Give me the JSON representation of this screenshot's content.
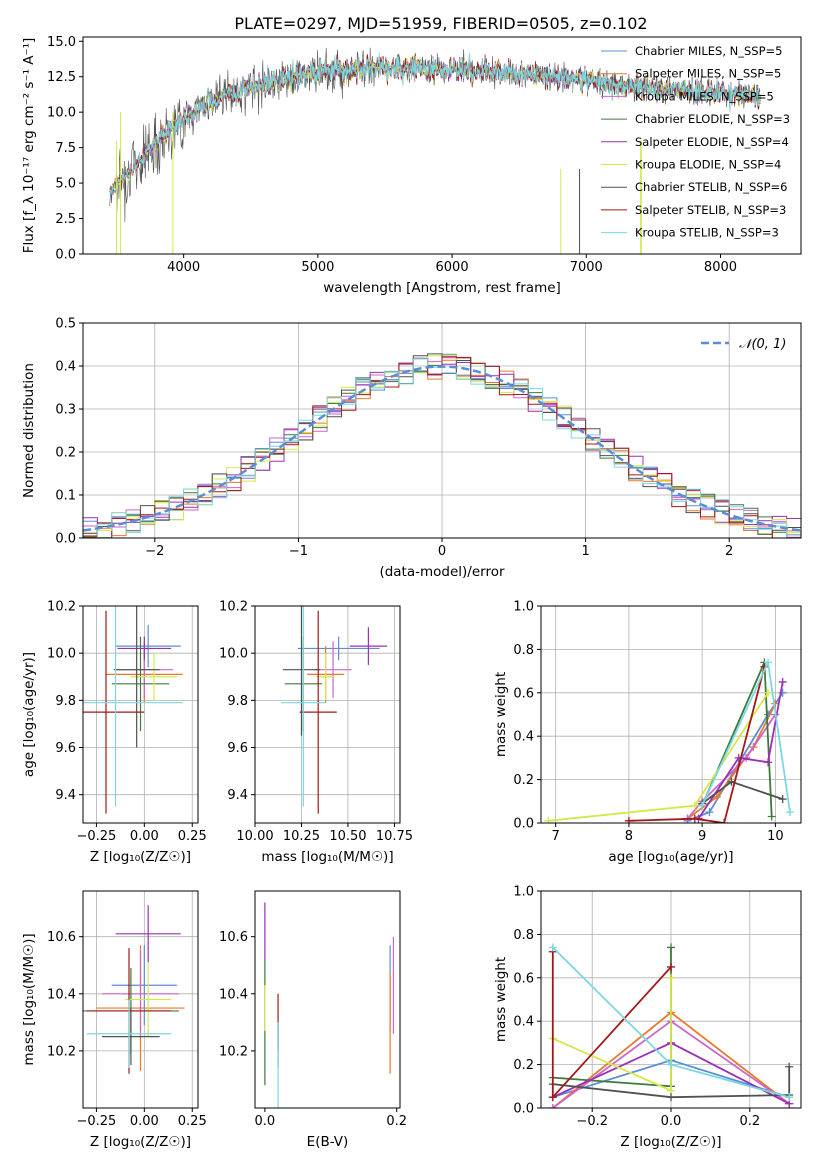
{
  "figure": {
    "title": "PLATE=0297, MJD=51959, FIBERID=0505, z=0.102"
  },
  "colors": [
    "#5b8dd6",
    "#e8792b",
    "#cc66cc",
    "#3d7a3d",
    "#9b2fb5",
    "#d4e84a",
    "#505050",
    "#a31818",
    "#7ad8e0"
  ],
  "chart_data": [
    {
      "id": "spectrum",
      "type": "line",
      "xlabel": "wavelength [Angstrom, rest frame]",
      "ylabel": "Flux [f_λ 10⁻¹⁷ erg cm⁻² s⁻¹ A⁻¹]",
      "xlim": [
        3250,
        8600
      ],
      "ylim": [
        0,
        15.3
      ],
      "xticks": [
        4000,
        5000,
        6000,
        7000,
        8000
      ],
      "yticks": [
        0.0,
        2.5,
        5.0,
        7.5,
        10.0,
        12.5,
        15.0
      ],
      "grid": false,
      "legend_position": "top-right",
      "series": [
        {
          "name": "Chabrier MILES, N_SSP=5"
        },
        {
          "name": "Salpeter MILES, N_SSP=5"
        },
        {
          "name": "Kroupa MILES, N_SSP=5"
        },
        {
          "name": "Chabrier ELODIE, N_SSP=3"
        },
        {
          "name": "Salpeter ELODIE, N_SSP=4"
        },
        {
          "name": "Kroupa ELODIE, N_SSP=4"
        },
        {
          "name": "Chabrier STELIB, N_SSP=6"
        },
        {
          "name": "Salpeter STELIB, N_SSP=3"
        },
        {
          "name": "Kroupa STELIB, N_SSP=3"
        }
      ],
      "observed_continuum": {
        "x": [
          3450,
          3600,
          3800,
          4000,
          4200,
          4500,
          4800,
          5100,
          5400,
          5800,
          6200,
          6600,
          7000,
          7400,
          7800,
          8300
        ],
        "y": [
          4.5,
          5.8,
          8.0,
          9.5,
          10.8,
          11.8,
          12.5,
          12.9,
          13.1,
          13.1,
          12.9,
          12.6,
          12.3,
          11.8,
          11.5,
          11.2
        ]
      }
    },
    {
      "id": "residuals",
      "type": "histogram",
      "xlabel": "(data-model)/error",
      "ylabel": "Normed distribution",
      "xlim": [
        -2.5,
        2.5
      ],
      "ylim": [
        0,
        0.5
      ],
      "xticks": [
        -2,
        -1,
        0,
        1,
        2
      ],
      "yticks": [
        0.0,
        0.1,
        0.2,
        0.3,
        0.4,
        0.5
      ],
      "grid": true,
      "legend": {
        "label": "𝒩(0, 1)",
        "position": "top-right"
      },
      "bins": 50
    },
    {
      "id": "age_vs_Z",
      "type": "errorbar",
      "xlabel": "Z [log₁₀(Z/Z☉)]",
      "ylabel": "age  [log₁₀(age/yr)]",
      "xlim": [
        -0.32,
        0.28
      ],
      "ylim": [
        9.28,
        10.2
      ],
      "xticks": [
        -0.25,
        0.0,
        0.25
      ],
      "yticks": [
        9.4,
        9.6,
        9.8,
        10.0,
        10.2
      ],
      "grid": true,
      "points": [
        {
          "x": 0.02,
          "xerr": 0.17,
          "y": 10.03,
          "yerr": 0.09
        },
        {
          "x": 0.0,
          "xerr": 0.2,
          "y": 9.91,
          "yerr": 0.12
        },
        {
          "x": 0.0,
          "xerr": 0.15,
          "y": 9.93,
          "yerr": 0.12
        },
        {
          "x": -0.02,
          "xerr": 0.15,
          "y": 9.87,
          "yerr": 0.2
        },
        {
          "x": 0.0,
          "xerr": 0.14,
          "y": 10.02,
          "yerr": 0.05
        },
        {
          "x": 0.05,
          "xerr": 0.12,
          "y": 9.9,
          "yerr": 0.1
        },
        {
          "x": -0.04,
          "xerr": 0.12,
          "y": 9.93,
          "yerr": 0.33
        },
        {
          "x": -0.2,
          "xerr": 0.2,
          "y": 9.75,
          "yerr": 0.43
        },
        {
          "x": -0.15,
          "xerr": 0.35,
          "y": 9.79,
          "yerr": 0.44
        }
      ]
    },
    {
      "id": "age_vs_mass",
      "type": "errorbar",
      "xlabel": "mass [log₁₀(M/M☉)]",
      "xlim": [
        10.0,
        10.78
      ],
      "ylim": [
        9.28,
        10.2
      ],
      "xticks": [
        10.0,
        10.25,
        10.5,
        10.75
      ],
      "xticklabels": [
        "10.00",
        "10.25",
        "10.50",
        "10.75"
      ],
      "yticks": [
        9.4,
        9.6,
        9.8,
        10.0,
        10.2
      ],
      "grid": true,
      "points": [
        {
          "x": 10.45,
          "xerr": 0.22,
          "y": 10.02,
          "yerr": 0.05
        },
        {
          "x": 10.38,
          "xerr": 0.1,
          "y": 9.91,
          "yerr": 0.12
        },
        {
          "x": 10.42,
          "xerr": 0.1,
          "y": 9.93,
          "yerr": 0.12
        },
        {
          "x": 10.26,
          "xerr": 0.1,
          "y": 9.87,
          "yerr": 0.2
        },
        {
          "x": 10.61,
          "xerr": 0.1,
          "y": 10.03,
          "yerr": 0.08
        },
        {
          "x": 10.38,
          "xerr": 0.05,
          "y": 9.9,
          "yerr": 0.1
        },
        {
          "x": 10.25,
          "xerr": 0.1,
          "y": 9.93,
          "yerr": 0.28
        },
        {
          "x": 10.34,
          "xerr": 0.1,
          "y": 9.75,
          "yerr": 0.43
        },
        {
          "x": 10.26,
          "xerr": 0.12,
          "y": 9.79,
          "yerr": 0.44
        }
      ]
    },
    {
      "id": "massweight_vs_age",
      "type": "line",
      "xlabel": "age  [log₁₀(age/yr)]",
      "ylabel": "mass weight",
      "xlim": [
        6.8,
        10.35
      ],
      "ylim": [
        0,
        1.0
      ],
      "xticks": [
        7,
        8,
        9,
        10
      ],
      "yticks": [
        0.0,
        0.2,
        0.4,
        0.6,
        0.8,
        1.0
      ],
      "grid": true,
      "series": [
        {
          "x": [
            8.8,
            9.1,
            9.9,
            10.1
          ],
          "y": [
            0.01,
            0.05,
            0.5,
            0.6
          ]
        },
        {
          "x": [
            8.8,
            9.2,
            9.7,
            10.0
          ],
          "y": [
            0.02,
            0.12,
            0.35,
            0.55
          ]
        },
        {
          "x": [
            8.8,
            9.0,
            9.6,
            10.0
          ],
          "y": [
            0.02,
            0.1,
            0.3,
            0.5
          ]
        },
        {
          "x": [
            9.0,
            9.85,
            9.95
          ],
          "y": [
            0.08,
            0.74,
            0.03
          ]
        },
        {
          "x": [
            8.95,
            9.5,
            9.9,
            10.1
          ],
          "y": [
            0.02,
            0.3,
            0.28,
            0.65
          ]
        },
        {
          "x": [
            6.9,
            8.9,
            9.9
          ],
          "y": [
            0.01,
            0.08,
            0.6
          ]
        },
        {
          "x": [
            9.0,
            9.4,
            10.1
          ],
          "y": [
            0.09,
            0.19,
            0.11
          ]
        },
        {
          "x": [
            8.0,
            8.9,
            9.3,
            9.85
          ],
          "y": [
            0.01,
            0.02,
            0.0,
            0.72
          ]
        },
        {
          "x": [
            9.0,
            9.9,
            10.2
          ],
          "y": [
            0.08,
            0.74,
            0.05
          ]
        }
      ]
    },
    {
      "id": "mass_vs_Z",
      "type": "errorbar",
      "xlabel": "Z [log₁₀(Z/Z☉)]",
      "ylabel": "mass [log₁₀(M/M☉)]",
      "xlim": [
        -0.32,
        0.28
      ],
      "ylim": [
        10.0,
        10.76
      ],
      "xticks": [
        -0.25,
        0.0,
        0.25
      ],
      "yticks": [
        10.2,
        10.4,
        10.6
      ],
      "grid": true,
      "points": [
        {
          "x": 0.0,
          "xerr": 0.17,
          "y": 10.43,
          "yerr": 0.14
        },
        {
          "x": -0.02,
          "xerr": 0.23,
          "y": 10.35,
          "yerr": 0.22
        },
        {
          "x": -0.02,
          "xerr": 0.2,
          "y": 10.4,
          "yerr": 0.15
        },
        {
          "x": -0.07,
          "xerr": 0.25,
          "y": 10.34,
          "yerr": 0.15
        },
        {
          "x": 0.02,
          "xerr": 0.17,
          "y": 10.61,
          "yerr": 0.1
        },
        {
          "x": 0.02,
          "xerr": 0.12,
          "y": 10.38,
          "yerr": 0.13
        },
        {
          "x": -0.07,
          "xerr": 0.15,
          "y": 10.25,
          "yerr": 0.1
        },
        {
          "x": -0.08,
          "xerr": 0.22,
          "y": 10.34,
          "yerr": 0.22
        },
        {
          "x": -0.08,
          "xerr": 0.22,
          "y": 10.26,
          "yerr": 0.12
        }
      ]
    },
    {
      "id": "mass_vs_ebv",
      "type": "errorbar",
      "xlabel": "E(B-V)",
      "xlim": [
        -0.015,
        0.205
      ],
      "ylim": [
        10.0,
        10.76
      ],
      "xticks": [
        0.0,
        0.2
      ],
      "yticks": [
        10.2,
        10.4,
        10.6
      ],
      "grid": false,
      "points": [
        {
          "x": 0.19,
          "y": 10.42,
          "yerr": 0.15
        },
        {
          "x": 0.19,
          "y": 10.3,
          "yerr": 0.18
        },
        {
          "x": 0.195,
          "y": 10.43,
          "yerr": 0.17
        },
        {
          "x": 0.0,
          "y": 10.3,
          "yerr": 0.22
        },
        {
          "x": 0.0,
          "y": 10.62,
          "yerr": 0.1
        },
        {
          "x": 0.0,
          "y": 10.35,
          "yerr": 0.08
        },
        {
          "x": 0.02,
          "y": 10.22,
          "yerr": 0.08
        },
        {
          "x": 0.02,
          "y": 10.3,
          "yerr": 0.1
        },
        {
          "x": 0.02,
          "y": 10.15,
          "yerr": 0.15
        }
      ]
    },
    {
      "id": "massweight_vs_Z",
      "type": "line",
      "xlabel": "Z [log₁₀(Z/Z☉)]",
      "ylabel": "mass weight",
      "xlim": [
        -0.33,
        0.33
      ],
      "ylim": [
        0,
        1.0
      ],
      "xticks": [
        -0.2,
        0.0,
        0.2
      ],
      "yticks": [
        0.0,
        0.2,
        0.4,
        0.6,
        0.8,
        1.0
      ],
      "grid": true,
      "series": [
        {
          "x": [
            -0.3,
            0.0,
            0.3
          ],
          "y": [
            0.05,
            0.22,
            0.05
          ]
        },
        {
          "x": [
            -0.3,
            0.0,
            0.3
          ],
          "y": [
            0.0,
            0.44,
            0.02
          ]
        },
        {
          "x": [
            -0.3,
            0.0,
            0.3
          ],
          "y": [
            0.0,
            0.4,
            0.02
          ]
        },
        {
          "x": [
            -0.3,
            0.0,
            0.0
          ],
          "y": [
            0.14,
            0.1,
            0.74
          ]
        },
        {
          "x": [
            -0.3,
            0.0,
            0.3
          ],
          "y": [
            0.05,
            0.3,
            0.02
          ]
        },
        {
          "x": [
            -0.3,
            0.0,
            0.0
          ],
          "y": [
            0.32,
            0.08,
            0.6
          ]
        },
        {
          "x": [
            -0.3,
            0.0,
            0.3,
            0.3
          ],
          "y": [
            0.11,
            0.05,
            0.06,
            0.19
          ]
        },
        {
          "x": [
            -0.3,
            -0.3,
            0.0
          ],
          "y": [
            0.72,
            0.05,
            0.65
          ]
        },
        {
          "x": [
            -0.3,
            0.0,
            0.3
          ],
          "y": [
            0.74,
            0.2,
            0.05
          ]
        }
      ]
    }
  ]
}
